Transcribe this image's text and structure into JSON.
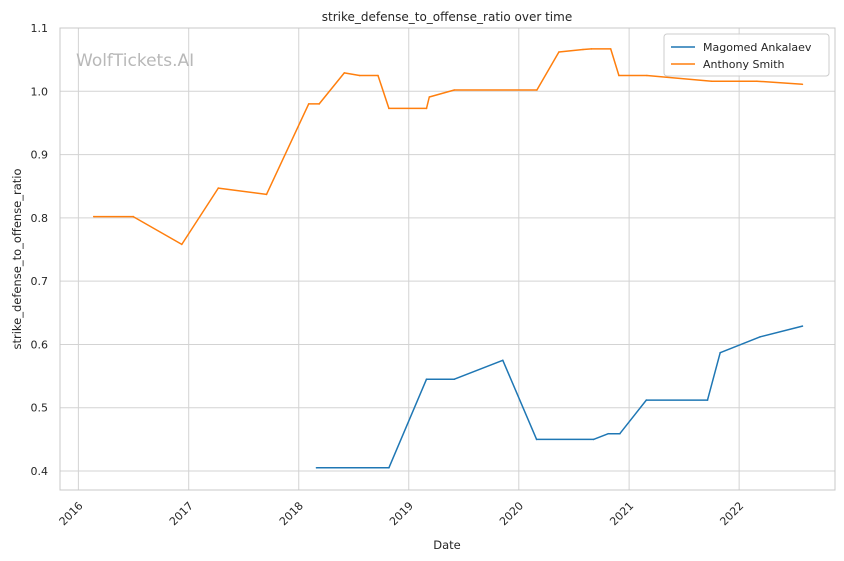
{
  "chart_data": {
    "type": "line",
    "title": "strike_defense_to_offense_ratio over time",
    "xlabel": "Date",
    "ylabel": "strike_defense_to_offense_ratio",
    "watermark": "WolfTickets.AI",
    "xlim": [
      "2015-11-01",
      "2022-11-15"
    ],
    "ylim": [
      0.37,
      1.1
    ],
    "grid": true,
    "legend_position": "top-right",
    "x_ticks": [
      {
        "label": "2016",
        "date": "2016-01-01"
      },
      {
        "label": "2017",
        "date": "2017-01-01"
      },
      {
        "label": "2018",
        "date": "2018-01-01"
      },
      {
        "label": "2019",
        "date": "2019-01-01"
      },
      {
        "label": "2020",
        "date": "2020-01-01"
      },
      {
        "label": "2021",
        "date": "2021-01-01"
      },
      {
        "label": "2022",
        "date": "2022-01-01"
      }
    ],
    "y_ticks": [
      {
        "label": "0.4",
        "value": 0.4
      },
      {
        "label": "0.5",
        "value": 0.5
      },
      {
        "label": "0.6",
        "value": 0.6
      },
      {
        "label": "0.7",
        "value": 0.7
      },
      {
        "label": "0.8",
        "value": 0.8
      },
      {
        "label": "0.9",
        "value": 0.9
      },
      {
        "label": "1.0",
        "value": 1.0
      },
      {
        "label": "1.1",
        "value": 1.1
      }
    ],
    "series": [
      {
        "name": "Magomed Ankalaev",
        "color": "#1f77b4",
        "points": [
          {
            "x": "2018-03-01",
            "y": 0.405
          },
          {
            "x": "2018-10-27",
            "y": 0.405
          },
          {
            "x": "2019-03-01",
            "y": 0.545
          },
          {
            "x": "2019-06-01",
            "y": 0.545
          },
          {
            "x": "2019-11-09",
            "y": 0.575
          },
          {
            "x": "2020-02-29",
            "y": 0.45
          },
          {
            "x": "2020-09-05",
            "y": 0.45
          },
          {
            "x": "2020-10-24",
            "y": 0.459
          },
          {
            "x": "2020-12-01",
            "y": 0.459
          },
          {
            "x": "2021-02-27",
            "y": 0.512
          },
          {
            "x": "2021-09-18",
            "y": 0.512
          },
          {
            "x": "2021-10-30",
            "y": 0.587
          },
          {
            "x": "2022-03-12",
            "y": 0.612
          },
          {
            "x": "2022-07-30",
            "y": 0.629
          }
        ]
      },
      {
        "name": "Anthony Smith",
        "color": "#ff7f0e",
        "points": [
          {
            "x": "2016-02-21",
            "y": 0.802
          },
          {
            "x": "2016-07-01",
            "y": 0.802
          },
          {
            "x": "2016-12-09",
            "y": 0.758
          },
          {
            "x": "2017-04-09",
            "y": 0.847
          },
          {
            "x": "2017-09-16",
            "y": 0.837
          },
          {
            "x": "2018-02-03",
            "y": 0.98
          },
          {
            "x": "2018-03-10",
            "y": 0.98
          },
          {
            "x": "2018-06-01",
            "y": 1.029
          },
          {
            "x": "2018-07-22",
            "y": 1.025
          },
          {
            "x": "2018-09-21",
            "y": 1.025
          },
          {
            "x": "2018-10-27",
            "y": 0.973
          },
          {
            "x": "2019-03-01",
            "y": 0.973
          },
          {
            "x": "2019-03-10",
            "y": 0.991
          },
          {
            "x": "2019-06-01",
            "y": 1.002
          },
          {
            "x": "2020-03-01",
            "y": 1.002
          },
          {
            "x": "2020-05-13",
            "y": 1.062
          },
          {
            "x": "2020-08-01",
            "y": 1.066
          },
          {
            "x": "2020-08-29",
            "y": 1.067
          },
          {
            "x": "2020-11-01",
            "y": 1.067
          },
          {
            "x": "2020-11-28",
            "y": 1.025
          },
          {
            "x": "2021-03-01",
            "y": 1.025
          },
          {
            "x": "2021-10-02",
            "y": 1.016
          },
          {
            "x": "2022-03-01",
            "y": 1.016
          },
          {
            "x": "2022-07-30",
            "y": 1.011
          }
        ]
      }
    ]
  }
}
